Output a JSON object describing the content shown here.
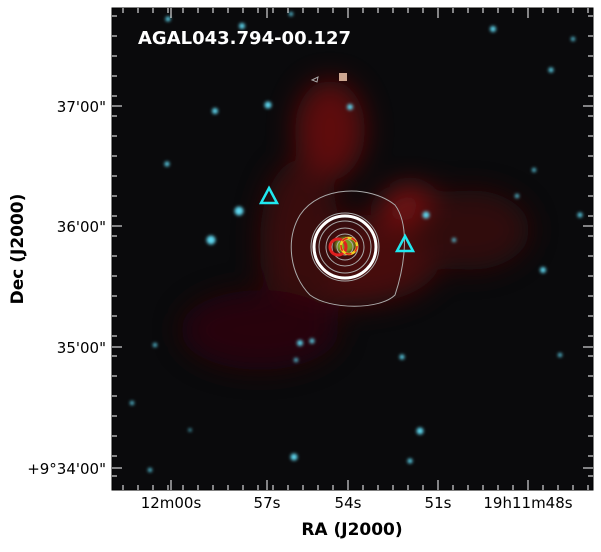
{
  "figure": {
    "title": "AGAL043.794-00.127",
    "xlabel": "RA (J2000)",
    "ylabel": "Dec (J2000)",
    "xticks": [
      "12m00s",
      "57s",
      "54s",
      "51s",
      "19h11m48s"
    ],
    "yticks": [
      "37'00\"",
      "36'00\"",
      "35'00\"",
      "+9°34'00\""
    ]
  }
}
